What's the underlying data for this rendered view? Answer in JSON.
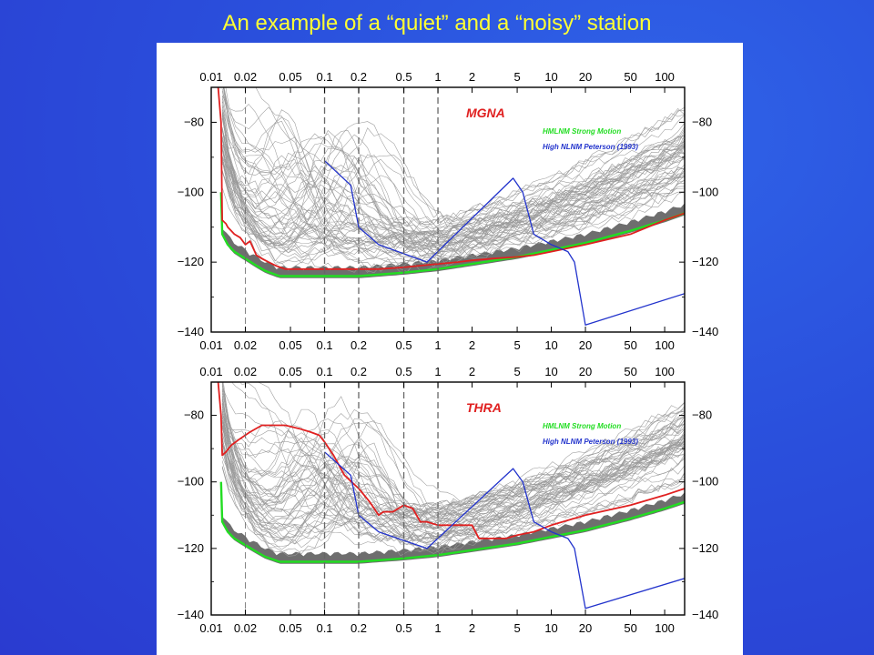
{
  "slide": {
    "title": "An example of a “quiet” and a “noisy” station",
    "title_color": "#ffff33",
    "background_color": "#2a4fdc",
    "panel_color": "#ffffff"
  },
  "chart_data": [
    {
      "type": "line",
      "title": "",
      "station": "MGNA",
      "xscale": "log",
      "xlim": [
        0.01,
        150
      ],
      "ylim": [
        -140,
        -70
      ],
      "xticks": [
        0.01,
        0.02,
        0.05,
        0.1,
        0.2,
        0.5,
        1,
        2,
        5,
        10,
        20,
        50,
        100
      ],
      "xtick_labels": [
        "0.01",
        "0.02",
        "0.05",
        "0.1",
        "0.2",
        "0.5",
        "1",
        "2",
        "5",
        "10",
        "20",
        "50",
        "100"
      ],
      "yticks": [
        -140,
        -120,
        -100,
        -80
      ],
      "ytick_labels": [
        "−140",
        "−120",
        "−100",
        "−80"
      ],
      "dashed_verticals": [
        0.02,
        0.1,
        0.2,
        0.5,
        1
      ],
      "legend": [
        {
          "label": "HMLNM Strong Motion",
          "color": "#22dd22"
        },
        {
          "label": "High NLNM Peterson (1993)",
          "color": "#2233cc"
        }
      ],
      "colors": {
        "station": "#e02020",
        "model": "#22dd22",
        "peterson": "#2233cc",
        "background_traces": "#9a9a9a",
        "minimum_band": "#6e6e6e"
      },
      "series": [
        {
          "name": "MGNA",
          "role": "station",
          "x": [
            0.0115,
            0.0122,
            0.0125,
            0.0135,
            0.014,
            0.015,
            0.016,
            0.018,
            0.02,
            0.022,
            0.025,
            0.028,
            0.032,
            0.037,
            0.045,
            0.06,
            0.08,
            0.1,
            0.15,
            0.2,
            0.3,
            0.5,
            0.7,
            1,
            1.5,
            2,
            3,
            5,
            7,
            10,
            20,
            50,
            100,
            150
          ],
          "y": [
            -70,
            -80,
            -108,
            -109,
            -110,
            -111,
            -112,
            -113,
            -115,
            -114,
            -118,
            -119,
            -120,
            -121,
            -122,
            -122,
            -122,
            -122,
            -122,
            -122,
            -122,
            -121.5,
            -121,
            -120.5,
            -120,
            -119.5,
            -119,
            -118.5,
            -118,
            -117,
            -115,
            -112,
            -108,
            -106
          ]
        },
        {
          "name": "HMLNM Strong Motion",
          "role": "model",
          "x": [
            0.0122,
            0.0125,
            0.014,
            0.016,
            0.02,
            0.025,
            0.03,
            0.04,
            0.05,
            0.1,
            0.2,
            0.5,
            1,
            2,
            5,
            10,
            20,
            50,
            100,
            150
          ],
          "y": [
            -100,
            -112,
            -115,
            -117,
            -119,
            -121,
            -122.5,
            -124,
            -124,
            -124,
            -124,
            -123,
            -122,
            -120.5,
            -118.5,
            -116.5,
            -114.5,
            -111,
            -108,
            -106
          ]
        },
        {
          "name": "High NLNM Peterson (1993)",
          "role": "peterson",
          "x": [
            0.1,
            0.17,
            0.2,
            0.3,
            0.8,
            4.6,
            5.6,
            7,
            10,
            14,
            16,
            20,
            150
          ],
          "y": [
            -91,
            -98,
            -110,
            -115,
            -120,
            -96,
            -100,
            -112,
            -115,
            -117,
            -120,
            -138,
            -129
          ]
        }
      ]
    },
    {
      "type": "line",
      "title": "",
      "station": "THRA",
      "xscale": "log",
      "xlim": [
        0.01,
        150
      ],
      "ylim": [
        -140,
        -70
      ],
      "xticks": [
        0.01,
        0.02,
        0.05,
        0.1,
        0.2,
        0.5,
        1,
        2,
        5,
        10,
        20,
        50,
        100
      ],
      "xtick_labels": [
        "0.01",
        "0.02",
        "0.05",
        "0.1",
        "0.2",
        "0.5",
        "1",
        "2",
        "5",
        "10",
        "20",
        "50",
        "100"
      ],
      "yticks": [
        -140,
        -120,
        -100,
        -80
      ],
      "ytick_labels": [
        "−140",
        "−120",
        "−100",
        "−80"
      ],
      "dashed_verticals": [
        0.02,
        0.1,
        0.2,
        0.5,
        1
      ],
      "legend": [
        {
          "label": "HMLNM Strong Motion",
          "color": "#22dd22"
        },
        {
          "label": "High NLNM Peterson (1993)",
          "color": "#2233cc"
        }
      ],
      "colors": {
        "station": "#e02020",
        "model": "#22dd22",
        "peterson": "#2233cc",
        "background_traces": "#9a9a9a",
        "minimum_band": "#6e6e6e"
      },
      "series": [
        {
          "name": "THRA",
          "role": "station",
          "x": [
            0.0115,
            0.0122,
            0.0125,
            0.0135,
            0.015,
            0.018,
            0.022,
            0.028,
            0.035,
            0.045,
            0.06,
            0.075,
            0.09,
            0.1,
            0.12,
            0.15,
            0.2,
            0.25,
            0.3,
            0.33,
            0.4,
            0.5,
            0.6,
            0.7,
            0.8,
            1,
            1.5,
            2,
            2.3,
            2.6,
            3,
            4,
            5,
            7,
            10,
            20,
            50,
            100,
            150
          ],
          "y": [
            -70,
            -80,
            -92,
            -91,
            -89,
            -87,
            -85,
            -83,
            -83,
            -83,
            -84,
            -85,
            -86,
            -88,
            -92,
            -98,
            -102,
            -106,
            -110,
            -109,
            -109,
            -107,
            -108,
            -112,
            -112,
            -113,
            -113,
            -113,
            -117,
            -117,
            -117,
            -117,
            -116,
            -115,
            -113,
            -110,
            -107,
            -104,
            -102
          ]
        },
        {
          "name": "HMLNM Strong Motion",
          "role": "model",
          "x": [
            0.0122,
            0.0125,
            0.014,
            0.016,
            0.02,
            0.025,
            0.03,
            0.04,
            0.05,
            0.1,
            0.2,
            0.5,
            1,
            2,
            5,
            10,
            20,
            50,
            100,
            150
          ],
          "y": [
            -100,
            -112,
            -115,
            -117,
            -119,
            -121,
            -122.5,
            -124,
            -124,
            -124,
            -124,
            -123,
            -122,
            -120.5,
            -118.5,
            -116.5,
            -114.5,
            -111,
            -108,
            -106
          ]
        },
        {
          "name": "High NLNM Peterson (1993)",
          "role": "peterson",
          "x": [
            0.1,
            0.17,
            0.2,
            0.3,
            0.8,
            4.6,
            5.6,
            7,
            10,
            14,
            16,
            20,
            150
          ],
          "y": [
            -91,
            -98,
            -110,
            -115,
            -120,
            -96,
            -100,
            -112,
            -115,
            -117,
            -120,
            -138,
            -129
          ]
        }
      ]
    }
  ]
}
